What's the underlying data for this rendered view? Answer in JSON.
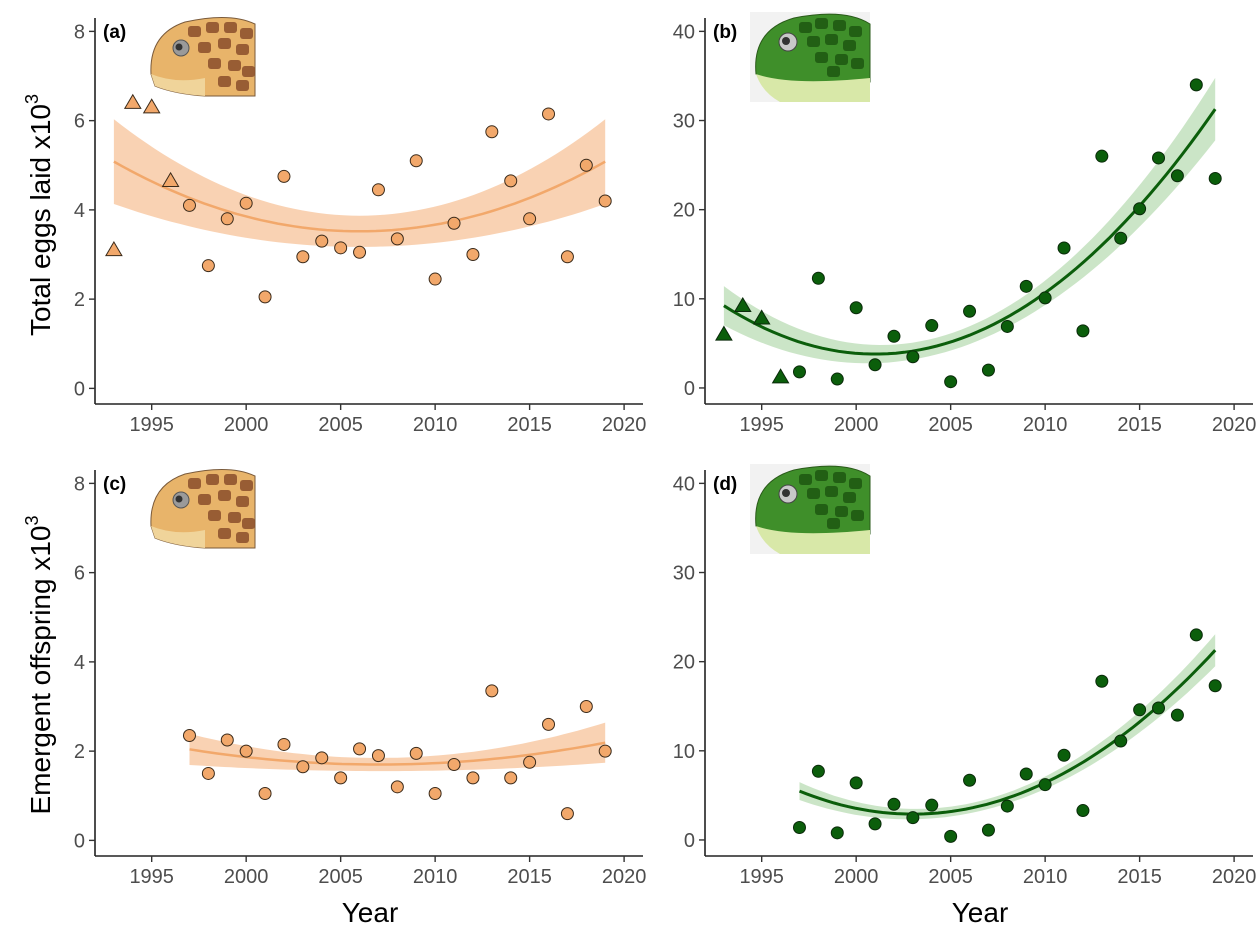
{
  "figure": {
    "y_axis_title_top": "Total eggs laid x10",
    "y_axis_title_top_sup": "3",
    "y_axis_title_bottom": "Emergent offspring x10",
    "y_axis_title_bottom_sup": "3",
    "x_axis_title": "Year",
    "colors": {
      "loggerhead": "#f2a86b",
      "loggerhead_band": "#f7c7a0",
      "green": "#0b5e0b",
      "green_band": "#b9dcb4",
      "outline": "#3a2a1a"
    },
    "icons": {
      "loggerhead": "loggerhead-turtle-head-icon",
      "green": "green-turtle-head-icon"
    }
  },
  "chart_data": [
    {
      "type": "scatter",
      "panel": "(a)",
      "species_icon": "loggerhead-turtle-head-icon",
      "xlabel": "",
      "ylabel": "Total eggs laid x10^3",
      "xlim": [
        1992,
        2021
      ],
      "ylim": [
        -0.35,
        8.3
      ],
      "x_ticks": [
        1995,
        2000,
        2005,
        2010,
        2015,
        2020
      ],
      "y_ticks": [
        0,
        2,
        4,
        6,
        8
      ],
      "series": [
        {
          "marker": "triangle",
          "x": [
            1993,
            1994,
            1995,
            1996
          ],
          "y": [
            3.1,
            6.4,
            6.3,
            4.65
          ]
        },
        {
          "marker": "circle",
          "x": [
            1997,
            1998,
            1999,
            2000,
            2001,
            2002,
            2003,
            2004,
            2005,
            2006,
            2007,
            2008,
            2009,
            2010,
            2011,
            2012,
            2013,
            2014,
            2015,
            2016,
            2017,
            2018,
            2019
          ],
          "y": [
            4.1,
            2.75,
            3.8,
            4.15,
            2.05,
            4.75,
            2.95,
            3.3,
            3.15,
            3.05,
            4.45,
            3.35,
            5.1,
            2.45,
            3.7,
            3.0,
            5.75,
            4.65,
            3.8,
            6.15,
            2.95,
            5.0,
            4.2
          ]
        }
      ],
      "fit": {
        "x_range": [
          1993,
          2019
        ],
        "quadratic": [
          3.52,
          0.0,
          0.00924
        ],
        "vertex": 2006,
        "band_halfwidth": [
          0.95,
          0.35,
          0.95
        ]
      }
    },
    {
      "type": "scatter",
      "panel": "(b)",
      "species_icon": "green-turtle-head-icon",
      "xlabel": "",
      "ylabel": "",
      "xlim": [
        1992,
        2021
      ],
      "ylim": [
        -1.8,
        41.5
      ],
      "x_ticks": [
        1995,
        2000,
        2005,
        2010,
        2015,
        2020
      ],
      "y_ticks": [
        0,
        10,
        20,
        30,
        40
      ],
      "series": [
        {
          "marker": "triangle",
          "x": [
            1993,
            1994,
            1995,
            1996
          ],
          "y": [
            6.0,
            9.2,
            7.8,
            1.2
          ]
        },
        {
          "marker": "circle",
          "x": [
            1997,
            1998,
            1999,
            2000,
            2001,
            2002,
            2003,
            2004,
            2005,
            2006,
            2007,
            2008,
            2009,
            2010,
            2011,
            2012,
            2013,
            2014,
            2015,
            2016,
            2017,
            2018,
            2019
          ],
          "y": [
            1.8,
            12.3,
            1.0,
            9.0,
            2.6,
            5.8,
            3.5,
            7.0,
            0.7,
            8.6,
            2.0,
            6.9,
            11.4,
            10.1,
            15.7,
            6.4,
            26.0,
            16.8,
            20.1,
            25.8,
            23.8,
            34.0,
            23.5
          ]
        }
      ],
      "fit": {
        "x_range": [
          1993,
          2019
        ],
        "quadratic": [
          3.8,
          0.0,
          0.0848
        ],
        "vertex": 2001,
        "band_halfwidth": [
          2.2,
          1.0,
          3.5
        ]
      }
    },
    {
      "type": "scatter",
      "panel": "(c)",
      "species_icon": "loggerhead-turtle-head-icon",
      "xlabel": "Year",
      "ylabel": "Emergent offspring x10^3",
      "xlim": [
        1992,
        2021
      ],
      "ylim": [
        -0.35,
        8.3
      ],
      "x_ticks": [
        1995,
        2000,
        2005,
        2010,
        2015,
        2020
      ],
      "y_ticks": [
        0,
        2,
        4,
        6,
        8
      ],
      "series": [
        {
          "marker": "circle",
          "x": [
            1997,
            1998,
            1999,
            2000,
            2001,
            2002,
            2003,
            2004,
            2005,
            2006,
            2007,
            2008,
            2009,
            2010,
            2011,
            2012,
            2013,
            2014,
            2015,
            2016,
            2017,
            2018,
            2019
          ],
          "y": [
            2.35,
            1.5,
            2.25,
            2.0,
            1.05,
            2.15,
            1.65,
            1.85,
            1.4,
            2.05,
            1.9,
            1.2,
            1.95,
            1.05,
            1.7,
            1.4,
            3.35,
            1.4,
            1.75,
            2.6,
            0.6,
            3.0,
            2.0
          ]
        }
      ],
      "fit": {
        "x_range": [
          1997,
          2019
        ],
        "quadratic": [
          1.7,
          0.0,
          0.0034
        ],
        "vertex": 2007,
        "band_halfwidth": [
          0.35,
          0.15,
          0.45
        ]
      }
    },
    {
      "type": "scatter",
      "panel": "(d)",
      "species_icon": "green-turtle-head-icon",
      "xlabel": "Year",
      "ylabel": "",
      "xlim": [
        1992,
        2021
      ],
      "ylim": [
        -1.8,
        41.5
      ],
      "x_ticks": [
        1995,
        2000,
        2005,
        2010,
        2015,
        2020
      ],
      "y_ticks": [
        0,
        10,
        20,
        30,
        40
      ],
      "series": [
        {
          "marker": "circle",
          "x": [
            1997,
            1998,
            1999,
            2000,
            2001,
            2002,
            2003,
            2004,
            2005,
            2006,
            2007,
            2008,
            2009,
            2010,
            2011,
            2012,
            2013,
            2014,
            2015,
            2016,
            2017,
            2018,
            2019
          ],
          "y": [
            1.4,
            7.7,
            0.8,
            6.4,
            1.8,
            4.0,
            2.5,
            3.9,
            0.4,
            6.7,
            1.1,
            3.8,
            7.4,
            6.2,
            9.5,
            3.3,
            17.8,
            11.1,
            14.6,
            14.8,
            14.0,
            23.0,
            17.3
          ]
        }
      ],
      "fit": {
        "x_range": [
          1997,
          2019
        ],
        "quadratic": [
          2.9,
          0.0,
          0.0718
        ],
        "vertex": 2003,
        "band_halfwidth": [
          1.0,
          0.6,
          1.8
        ]
      }
    }
  ]
}
